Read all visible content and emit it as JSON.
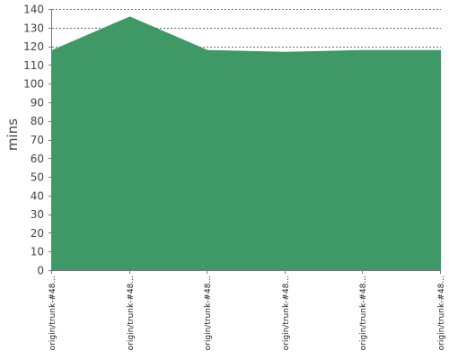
{
  "chart_data": {
    "type": "area",
    "categories": [
      "origin/trunk-#48...",
      "origin/trunk-#48...",
      "origin/trunk-#48...",
      "origin/trunk-#48...",
      "origin/trunk-#48...",
      "origin/trunk-#48..."
    ],
    "series": [
      {
        "values": [
          118,
          136,
          118,
          117,
          118,
          118
        ]
      }
    ],
    "ylabel": "mins",
    "xlabel": "",
    "ylim": [
      0,
      140
    ],
    "yticks": [
      0,
      10,
      20,
      30,
      40,
      50,
      60,
      70,
      80,
      90,
      100,
      110,
      120,
      130,
      140
    ],
    "grid": true,
    "colors": {
      "fill": "#3f9966",
      "grid": "#6f6f6f",
      "axis": "#777777"
    }
  }
}
